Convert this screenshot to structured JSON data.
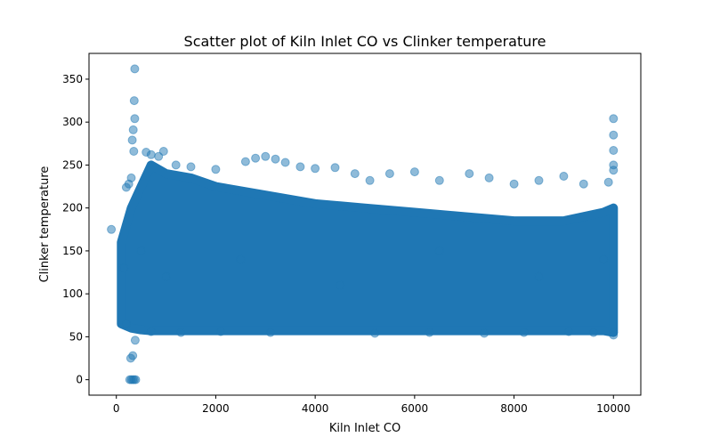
{
  "chart_data": {
    "type": "scatter",
    "title": "Scatter plot of Kiln Inlet CO vs Clinker temperature",
    "xlabel": "Kiln Inlet CO",
    "ylabel": "Clinker temperature",
    "xlim": [
      -550,
      10550
    ],
    "ylim": [
      -18,
      380
    ],
    "xticks": [
      0,
      2000,
      4000,
      6000,
      8000,
      10000
    ],
    "yticks": [
      0,
      50,
      100,
      150,
      200,
      250,
      300,
      350
    ],
    "grid": false,
    "marker_color": "#1f77b4",
    "marker_alpha": 0.5,
    "density_band": {
      "note": "approximate upper/lower envelope of the dense point cloud",
      "x": [
        100,
        300,
        500,
        700,
        1000,
        1500,
        2000,
        3000,
        4000,
        5000,
        6000,
        7000,
        8000,
        9000,
        9800,
        10000
      ],
      "upper": [
        160,
        200,
        225,
        250,
        240,
        235,
        225,
        215,
        205,
        200,
        195,
        190,
        185,
        185,
        195,
        200
      ],
      "lower": [
        65,
        60,
        58,
        57,
        57,
        57,
        57,
        57,
        57,
        57,
        57,
        57,
        57,
        57,
        57,
        55
      ]
    },
    "points": [
      {
        "x": -100,
        "y": 175
      },
      {
        "x": 370,
        "y": 362
      },
      {
        "x": 360,
        "y": 325
      },
      {
        "x": 370,
        "y": 304
      },
      {
        "x": 340,
        "y": 291
      },
      {
        "x": 320,
        "y": 279
      },
      {
        "x": 350,
        "y": 266
      },
      {
        "x": 300,
        "y": 235
      },
      {
        "x": 250,
        "y": 228
      },
      {
        "x": 200,
        "y": 224
      },
      {
        "x": 380,
        "y": 46
      },
      {
        "x": 330,
        "y": 28
      },
      {
        "x": 290,
        "y": 25
      },
      {
        "x": 300,
        "y": 0
      },
      {
        "x": 330,
        "y": 0
      },
      {
        "x": 360,
        "y": 0
      },
      {
        "x": 390,
        "y": 0
      },
      {
        "x": 270,
        "y": 0
      },
      {
        "x": 600,
        "y": 265
      },
      {
        "x": 700,
        "y": 262
      },
      {
        "x": 850,
        "y": 260
      },
      {
        "x": 950,
        "y": 266
      },
      {
        "x": 1200,
        "y": 250
      },
      {
        "x": 1500,
        "y": 248
      },
      {
        "x": 2000,
        "y": 245
      },
      {
        "x": 2600,
        "y": 254
      },
      {
        "x": 2800,
        "y": 258
      },
      {
        "x": 3000,
        "y": 260
      },
      {
        "x": 3200,
        "y": 257
      },
      {
        "x": 3400,
        "y": 253
      },
      {
        "x": 3700,
        "y": 248
      },
      {
        "x": 4000,
        "y": 246
      },
      {
        "x": 4400,
        "y": 247
      },
      {
        "x": 4800,
        "y": 240
      },
      {
        "x": 5100,
        "y": 232
      },
      {
        "x": 5500,
        "y": 240
      },
      {
        "x": 6000,
        "y": 242
      },
      {
        "x": 6500,
        "y": 232
      },
      {
        "x": 7100,
        "y": 240
      },
      {
        "x": 7500,
        "y": 235
      },
      {
        "x": 8000,
        "y": 228
      },
      {
        "x": 8500,
        "y": 232
      },
      {
        "x": 9000,
        "y": 237
      },
      {
        "x": 9400,
        "y": 228
      },
      {
        "x": 9900,
        "y": 230
      },
      {
        "x": 10000,
        "y": 304
      },
      {
        "x": 10000,
        "y": 285
      },
      {
        "x": 10000,
        "y": 267
      },
      {
        "x": 10000,
        "y": 250
      },
      {
        "x": 10000,
        "y": 244
      },
      {
        "x": 10000,
        "y": 55
      },
      {
        "x": 10000,
        "y": 52
      },
      {
        "x": 9600,
        "y": 55
      },
      {
        "x": 9100,
        "y": 56
      },
      {
        "x": 8200,
        "y": 55
      },
      {
        "x": 7400,
        "y": 54
      },
      {
        "x": 6300,
        "y": 55
      },
      {
        "x": 5200,
        "y": 54
      },
      {
        "x": 3100,
        "y": 55
      },
      {
        "x": 2100,
        "y": 56
      },
      {
        "x": 1300,
        "y": 55
      },
      {
        "x": 700,
        "y": 56
      },
      {
        "x": 200,
        "y": 65
      },
      {
        "x": 150,
        "y": 130
      },
      {
        "x": 500,
        "y": 150
      },
      {
        "x": 1000,
        "y": 120
      },
      {
        "x": 2500,
        "y": 140
      },
      {
        "x": 4500,
        "y": 110
      },
      {
        "x": 6500,
        "y": 150
      },
      {
        "x": 8500,
        "y": 120
      },
      {
        "x": 9800,
        "y": 140
      }
    ]
  }
}
